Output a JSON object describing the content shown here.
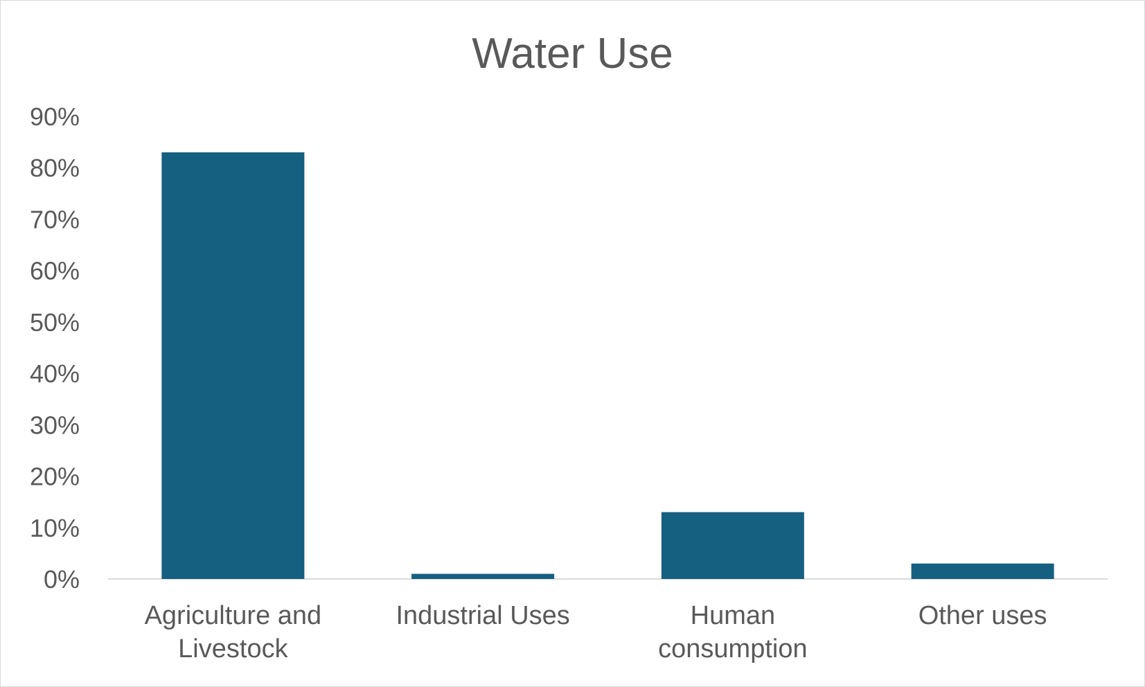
{
  "chart_data": {
    "type": "bar",
    "title": "Water Use",
    "xlabel": "",
    "ylabel": "",
    "categories": [
      [
        "Agriculture and",
        "Livestock"
      ],
      [
        "Industrial Uses"
      ],
      [
        "Human",
        "consumption"
      ],
      [
        "Other uses"
      ]
    ],
    "values": [
      83,
      1,
      13,
      3
    ],
    "value_unit": "%",
    "ylim": [
      0,
      90
    ],
    "yticks": [
      0,
      10,
      20,
      30,
      40,
      50,
      60,
      70,
      80,
      90
    ],
    "ytick_labels": [
      "0%",
      "10%",
      "20%",
      "30%",
      "40%",
      "50%",
      "60%",
      "70%",
      "80%",
      "90%"
    ],
    "grid": false,
    "legend": "none",
    "colors": {
      "bar": "#155F81",
      "text": "#595959",
      "axis": "#d9d9d9",
      "border": "#d9d9d9",
      "background": "#ffffff"
    }
  }
}
